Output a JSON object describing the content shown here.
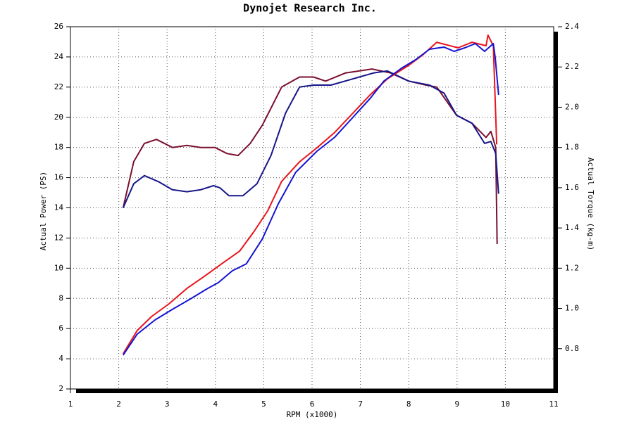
{
  "chart_data": {
    "type": "line",
    "title": "Dynojet Research Inc.",
    "x_label": "RPM (x1000)",
    "y_label": "Actual Power (PS)",
    "y2_label": "Actual Torque (kg-m)",
    "xlim": [
      1,
      11
    ],
    "xticks": [
      1,
      2,
      3,
      4,
      5,
      6,
      7,
      8,
      9,
      10,
      11
    ],
    "ylim": [
      2,
      26
    ],
    "yticks": [
      2,
      4,
      6,
      8,
      10,
      12,
      14,
      16,
      18,
      20,
      22,
      24,
      26
    ],
    "y2lim": [
      0.6,
      2.4
    ],
    "y2ticks": [
      {
        "value": 0.8,
        "label": "0.8"
      },
      {
        "value": 1.0,
        "label": "1.0"
      },
      1.2,
      1.4,
      1.6,
      1.8,
      {
        "value": 2.0,
        "label": "2.0"
      },
      2.2,
      2.4
    ],
    "grid": true,
    "series": [
      {
        "color": "#7a0f2e",
        "axis": "y2",
        "x": [
          2.09,
          2.31,
          2.53,
          2.78,
          3.11,
          3.41,
          3.7,
          3.99,
          4.24,
          4.47,
          4.72,
          4.97,
          5.37,
          5.74,
          6.03,
          6.28,
          6.69,
          7.24,
          7.63,
          8.0,
          8.36,
          8.58,
          8.99,
          9.31,
          9.6,
          9.7,
          9.8,
          9.83
        ],
        "values": [
          1.5,
          1.73,
          1.82,
          1.84,
          1.8,
          1.81,
          1.8,
          1.8,
          1.77,
          1.76,
          1.82,
          1.91,
          2.1,
          2.15,
          2.15,
          2.13,
          2.17,
          2.19,
          2.17,
          2.13,
          2.11,
          2.1,
          1.96,
          1.92,
          1.85,
          1.88,
          1.8,
          1.32
        ]
      },
      {
        "color": "#16168a",
        "axis": "y2",
        "x": [
          2.09,
          2.31,
          2.53,
          2.82,
          3.11,
          3.41,
          3.7,
          3.96,
          4.09,
          4.28,
          4.57,
          4.86,
          5.15,
          5.45,
          5.74,
          6.03,
          6.39,
          6.83,
          7.27,
          7.56,
          8.0,
          8.43,
          8.73,
          8.99,
          9.31,
          9.57,
          9.7,
          9.8,
          9.86
        ],
        "values": [
          1.5,
          1.62,
          1.66,
          1.63,
          1.59,
          1.58,
          1.59,
          1.61,
          1.6,
          1.56,
          1.56,
          1.62,
          1.76,
          1.97,
          2.1,
          2.11,
          2.11,
          2.14,
          2.17,
          2.18,
          2.13,
          2.11,
          2.07,
          1.96,
          1.92,
          1.82,
          1.83,
          1.77,
          1.57
        ]
      },
      {
        "color": "#e8141c",
        "x": [
          2.09,
          2.38,
          2.68,
          3.04,
          3.41,
          3.77,
          4.13,
          4.5,
          4.79,
          5.08,
          5.37,
          5.74,
          6.1,
          6.47,
          6.83,
          7.2,
          7.56,
          8.0,
          8.29,
          8.58,
          9.02,
          9.31,
          9.6,
          9.64,
          9.75,
          9.82
        ],
        "values": [
          4.33,
          5.87,
          6.8,
          7.64,
          8.66,
          9.46,
          10.29,
          11.13,
          12.39,
          13.79,
          15.75,
          17.05,
          17.98,
          19.0,
          20.22,
          21.48,
          22.55,
          23.44,
          24.13,
          24.97,
          24.6,
          24.97,
          24.74,
          25.44,
          24.74,
          18.2
        ]
      },
      {
        "color": "#1414d2",
        "x": [
          2.09,
          2.38,
          2.75,
          3.11,
          3.48,
          3.84,
          4.06,
          4.35,
          4.64,
          4.97,
          5.3,
          5.66,
          6.1,
          6.47,
          6.83,
          7.2,
          7.49,
          7.85,
          8.14,
          8.43,
          8.73,
          8.94,
          9.16,
          9.38,
          9.57,
          9.75,
          9.79,
          9.86
        ],
        "values": [
          4.24,
          5.63,
          6.57,
          7.27,
          7.96,
          8.66,
          9.04,
          9.83,
          10.29,
          11.93,
          14.26,
          16.35,
          17.75,
          18.68,
          19.94,
          21.24,
          22.41,
          23.25,
          23.81,
          24.51,
          24.65,
          24.37,
          24.6,
          24.88,
          24.37,
          24.88,
          23.95,
          21.48
        ]
      }
    ]
  }
}
